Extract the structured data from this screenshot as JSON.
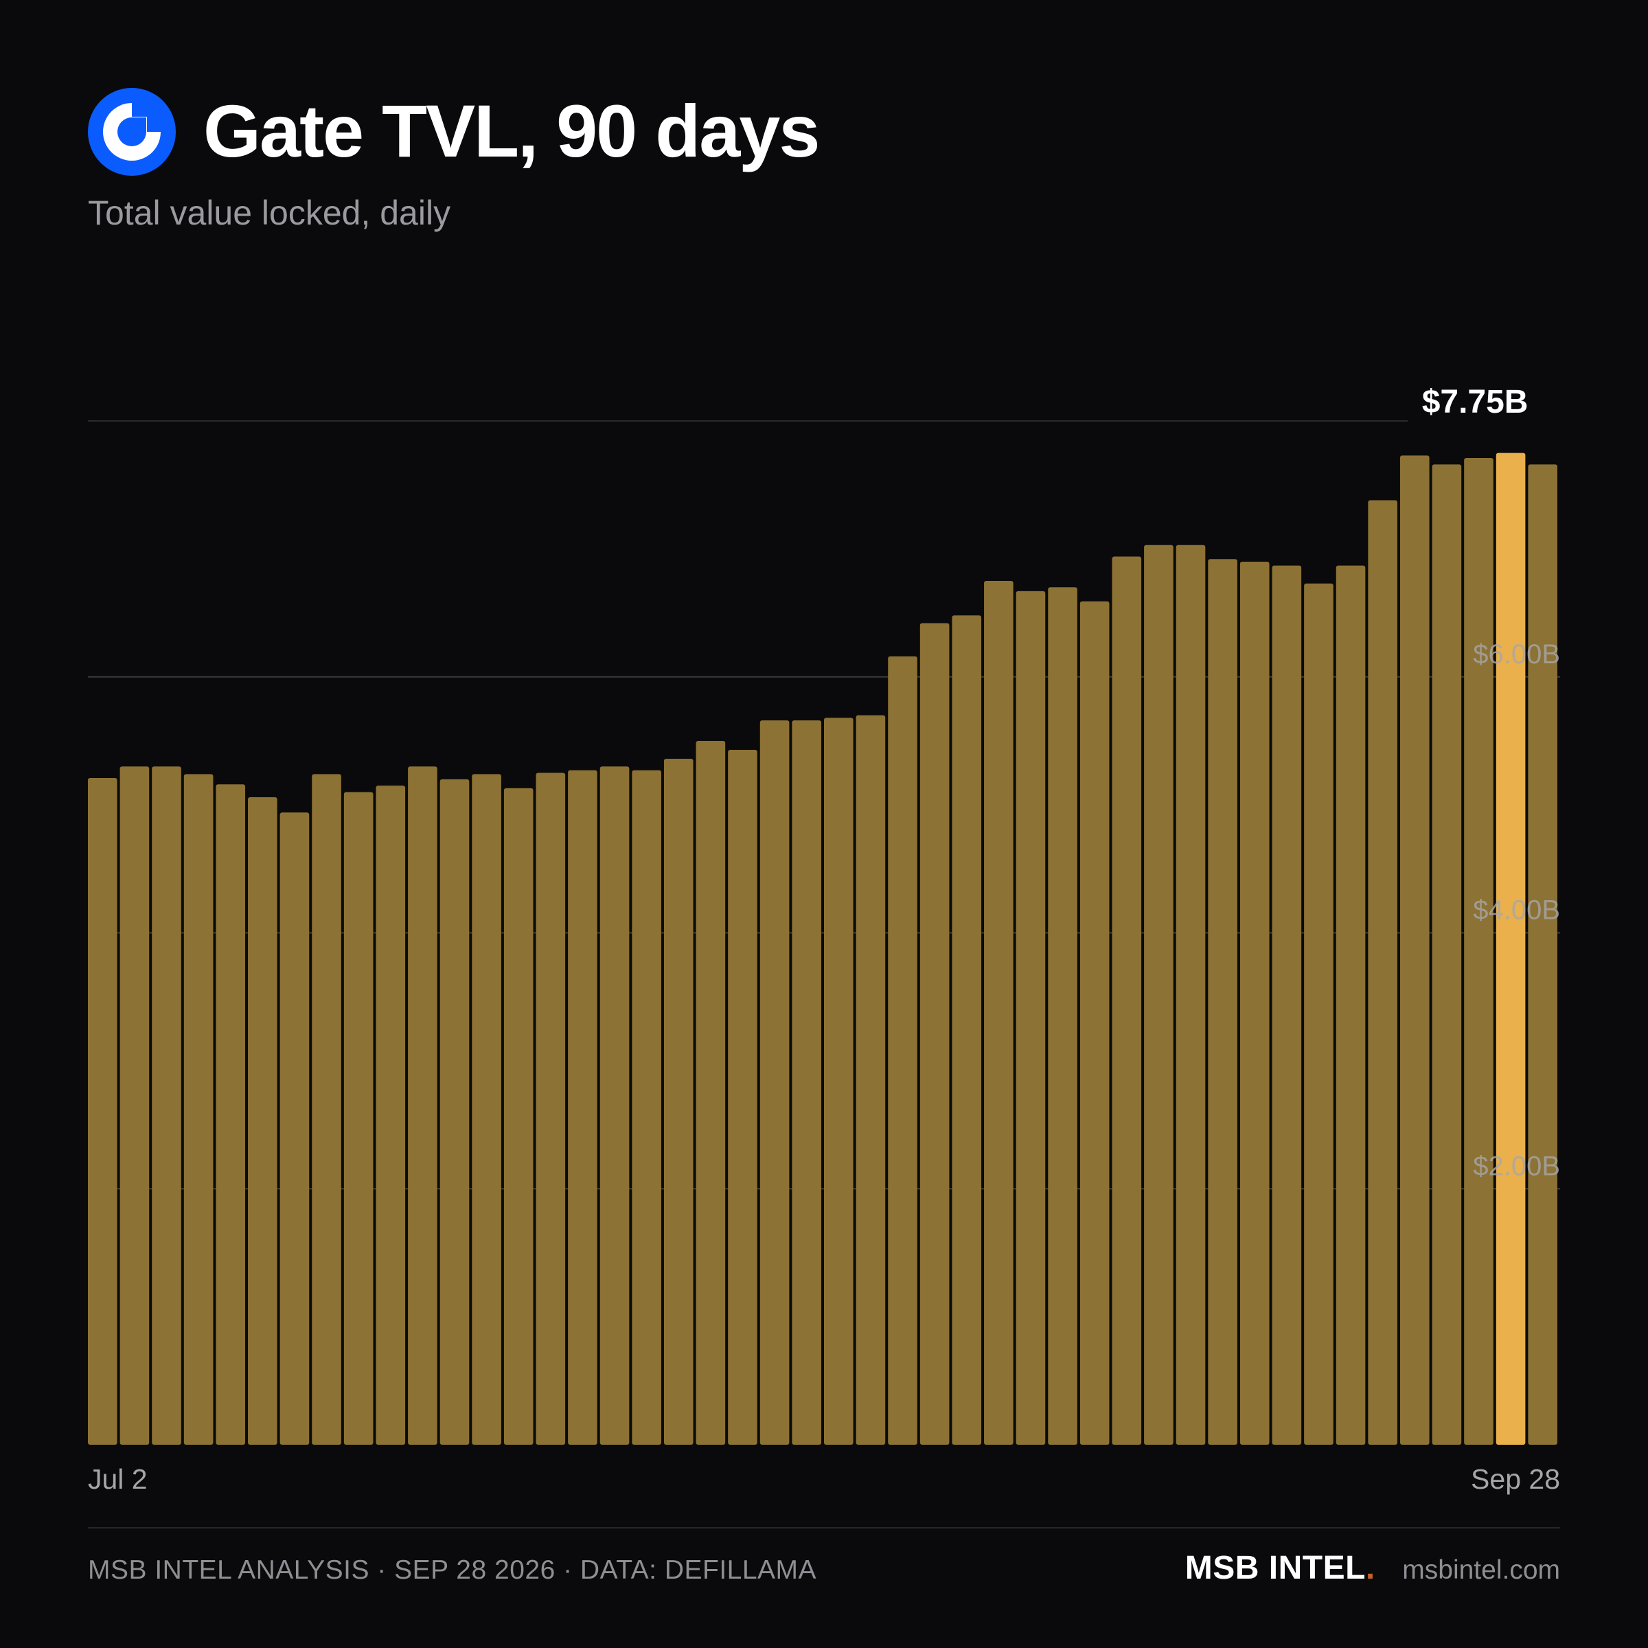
{
  "header": {
    "logo_icon": "gate-logo-icon",
    "logo_color": "#0a5cff",
    "title": "Gate TVL, 90 days",
    "subtitle": "Total value locked, daily"
  },
  "chart_data": {
    "type": "bar",
    "title": "Gate TVL, 90 days",
    "subtitle": "Total value locked, daily",
    "unit": "$B",
    "ylim": [
      0,
      8
    ],
    "yticks": [
      2,
      4,
      6,
      8
    ],
    "ytick_labels": [
      "$2.00B",
      "$4.00B",
      "$6.00B",
      ""
    ],
    "grid": true,
    "x_start_label": "Jul 2",
    "x_end_label": "Sep 28",
    "highlight_index": 44,
    "highlight_label": "$7.75B",
    "bar_color": "#8c7234",
    "highlight_color": "#e9b04c",
    "values": [
      5.21,
      5.3,
      5.3,
      5.24,
      5.16,
      5.06,
      4.94,
      5.24,
      5.1,
      5.15,
      5.3,
      5.2,
      5.24,
      5.13,
      5.25,
      5.27,
      5.3,
      5.27,
      5.36,
      5.5,
      5.43,
      5.66,
      5.66,
      5.68,
      5.7,
      6.16,
      6.42,
      6.48,
      6.75,
      6.67,
      6.7,
      6.59,
      6.94,
      7.03,
      7.03,
      6.92,
      6.9,
      6.87,
      6.73,
      6.87,
      7.38,
      7.73,
      7.66,
      7.71,
      7.75,
      7.66
    ]
  },
  "footer": {
    "left": "MSB INTEL ANALYSIS · SEP 28 2026 · DATA: DEFILLAMA",
    "brand": "MSB INTEL",
    "brand_dot": ".",
    "brand_dot_color": "#c0602a",
    "site": "msbintel.com"
  }
}
